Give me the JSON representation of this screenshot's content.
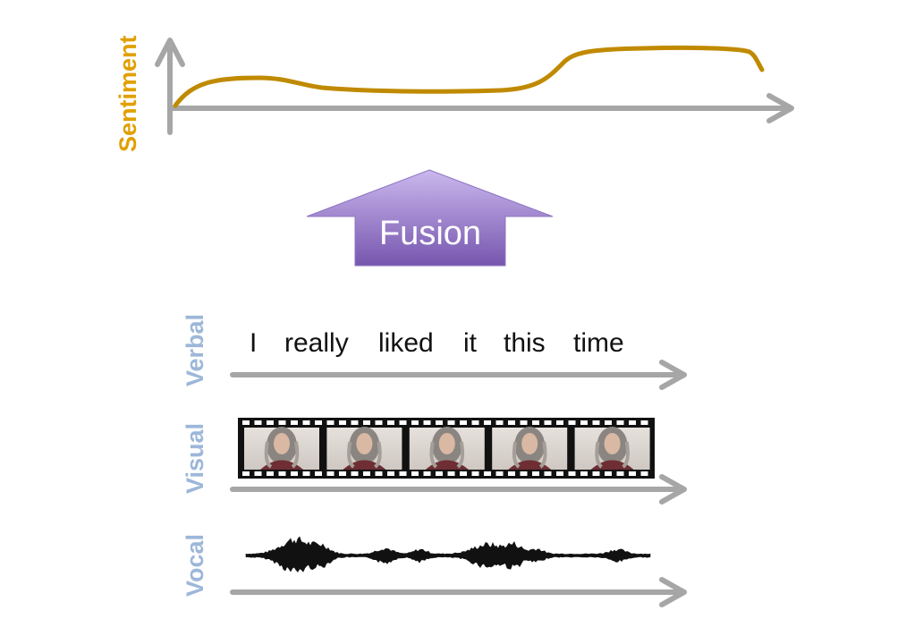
{
  "colors": {
    "sentiment": "#e1a000",
    "sentiment_curve": "#c08a00",
    "modality": "#9db7d9",
    "axis": "#a6a6a6",
    "fusion_top": "#c8b4ea",
    "fusion_bottom": "#7b5cb3"
  },
  "sentiment": {
    "axis_label": "Sentiment"
  },
  "fusion": {
    "label": "Fusion"
  },
  "modalities": {
    "verbal": {
      "label": "Verbal",
      "words": [
        "I",
        "really",
        "liked",
        "it",
        "this",
        "time"
      ]
    },
    "visual": {
      "label": "Visual",
      "frame_count": 5,
      "frame_content": "woman-portrait"
    },
    "vocal": {
      "label": "Vocal",
      "content": "audio-waveform"
    }
  }
}
